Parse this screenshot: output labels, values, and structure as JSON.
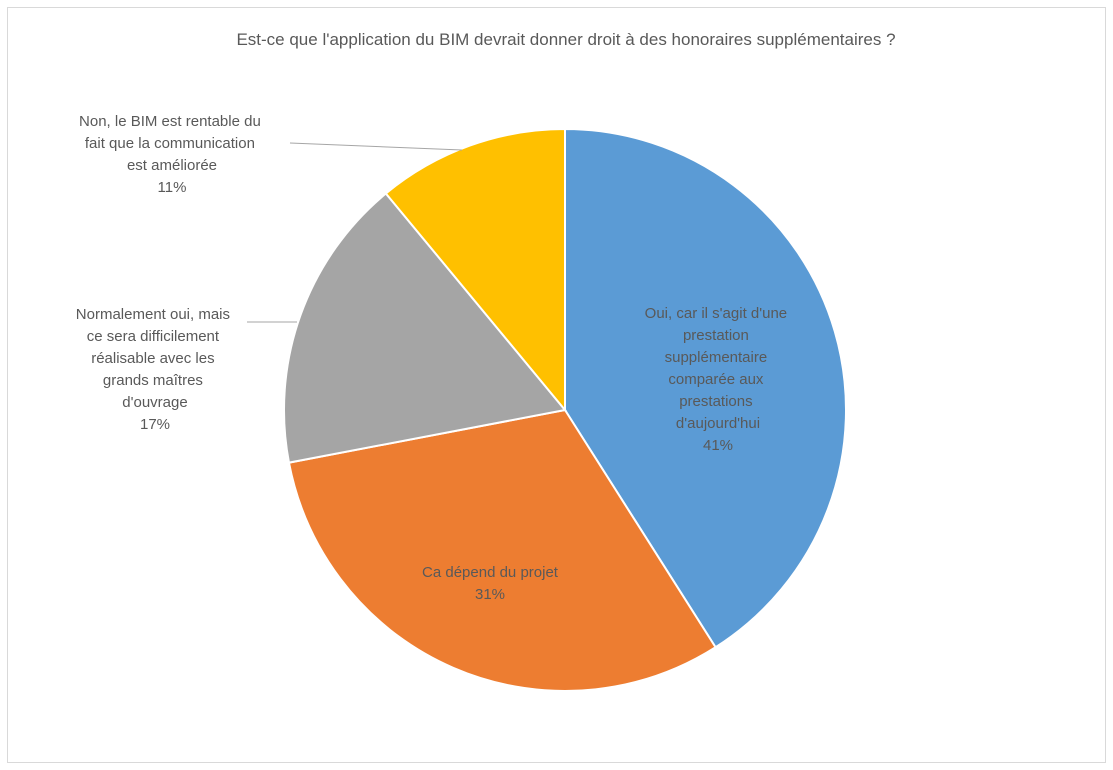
{
  "chart_data": {
    "type": "pie",
    "title": "Est-ce que l'application du BIM devrait donner droit à des honoraires supplémentaires ?",
    "categories": [
      "Oui, car il s'agit d'une prestation supplémentaire comparée aux prestations d'aujourd'hui",
      "Ca dépend du projet",
      "Normalement oui, mais ce sera difficilement réalisable avec les grands maîtres d'ouvrage",
      "Non, le BIM est rentable du fait que la communication est améliorée"
    ],
    "values": [
      41,
      31,
      17,
      11
    ],
    "value_labels": [
      "41%",
      "31%",
      "17%",
      "11%"
    ],
    "colors": [
      "#5b9bd5",
      "#ed7d31",
      "#a5a5a5",
      "#ffc000"
    ]
  }
}
